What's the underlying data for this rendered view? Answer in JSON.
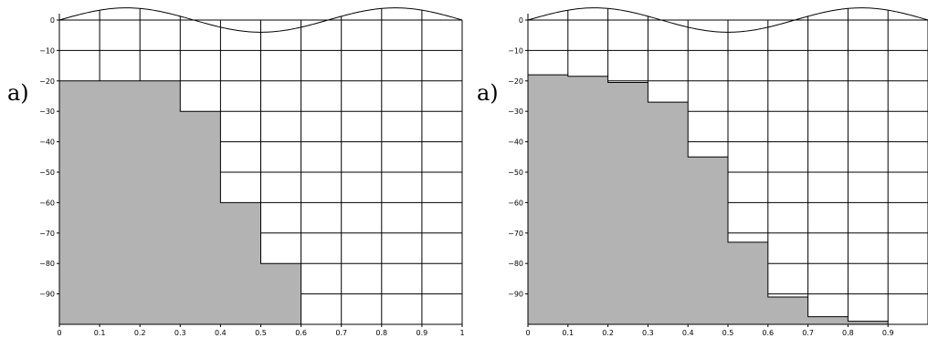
{
  "chart_data": [
    {
      "type": "area",
      "label": "a)",
      "x_ticks": [
        "0",
        "0.1",
        "0.2",
        "0.3",
        "0.4",
        "0.5",
        "0.6",
        "0.7",
        "0.8",
        "0.9",
        "1"
      ],
      "y_ticks": [
        "0",
        "−10",
        "−20",
        "−30",
        "−40",
        "−50",
        "−60",
        "−70",
        "−80",
        "−90"
      ],
      "xlim": [
        0,
        1
      ],
      "ylim": [
        -100,
        5
      ],
      "grid": true,
      "surface_wave": {
        "amplitude": 4,
        "wavelength": 0.667,
        "phase_shift": 0.0
      },
      "columns": [
        {
          "x": 0.0,
          "depth": -20
        },
        {
          "x": 0.1,
          "depth": -20
        },
        {
          "x": 0.2,
          "depth": -20
        },
        {
          "x": 0.3,
          "depth": -30
        },
        {
          "x": 0.4,
          "depth": -60
        },
        {
          "x": 0.5,
          "depth": -80
        },
        {
          "x": 0.6,
          "depth": -100
        },
        {
          "x": 0.7,
          "depth": -100
        },
        {
          "x": 0.8,
          "depth": -100
        },
        {
          "x": 0.9,
          "depth": -100
        }
      ],
      "fill_color": "#b3b3b3"
    },
    {
      "type": "area",
      "label": "a)",
      "x_ticks": [
        "0",
        "0.1",
        "0.2",
        "0.3",
        "0.4",
        "0.5",
        "0.6",
        "0.7",
        "0.8",
        "0.9"
      ],
      "y_ticks": [
        "0",
        "−10",
        "−20",
        "−30",
        "−40",
        "−50",
        "−60",
        "−70",
        "−80",
        "−90"
      ],
      "xlim": [
        0,
        1
      ],
      "ylim": [
        -100,
        5
      ],
      "grid": true,
      "surface_wave": {
        "amplitude": 4,
        "wavelength": 0.667,
        "phase_shift": 0.0
      },
      "columns": [
        {
          "x": 0.0,
          "depth": -18
        },
        {
          "x": 0.1,
          "depth": -18.5
        },
        {
          "x": 0.2,
          "depth": -20.5
        },
        {
          "x": 0.3,
          "depth": -27
        },
        {
          "x": 0.4,
          "depth": -45
        },
        {
          "x": 0.5,
          "depth": -73
        },
        {
          "x": 0.6,
          "depth": -91
        },
        {
          "x": 0.7,
          "depth": -97.5
        },
        {
          "x": 0.8,
          "depth": -99
        },
        {
          "x": 0.9,
          "depth": -100
        }
      ],
      "fill_color": "#b3b3b3"
    }
  ]
}
